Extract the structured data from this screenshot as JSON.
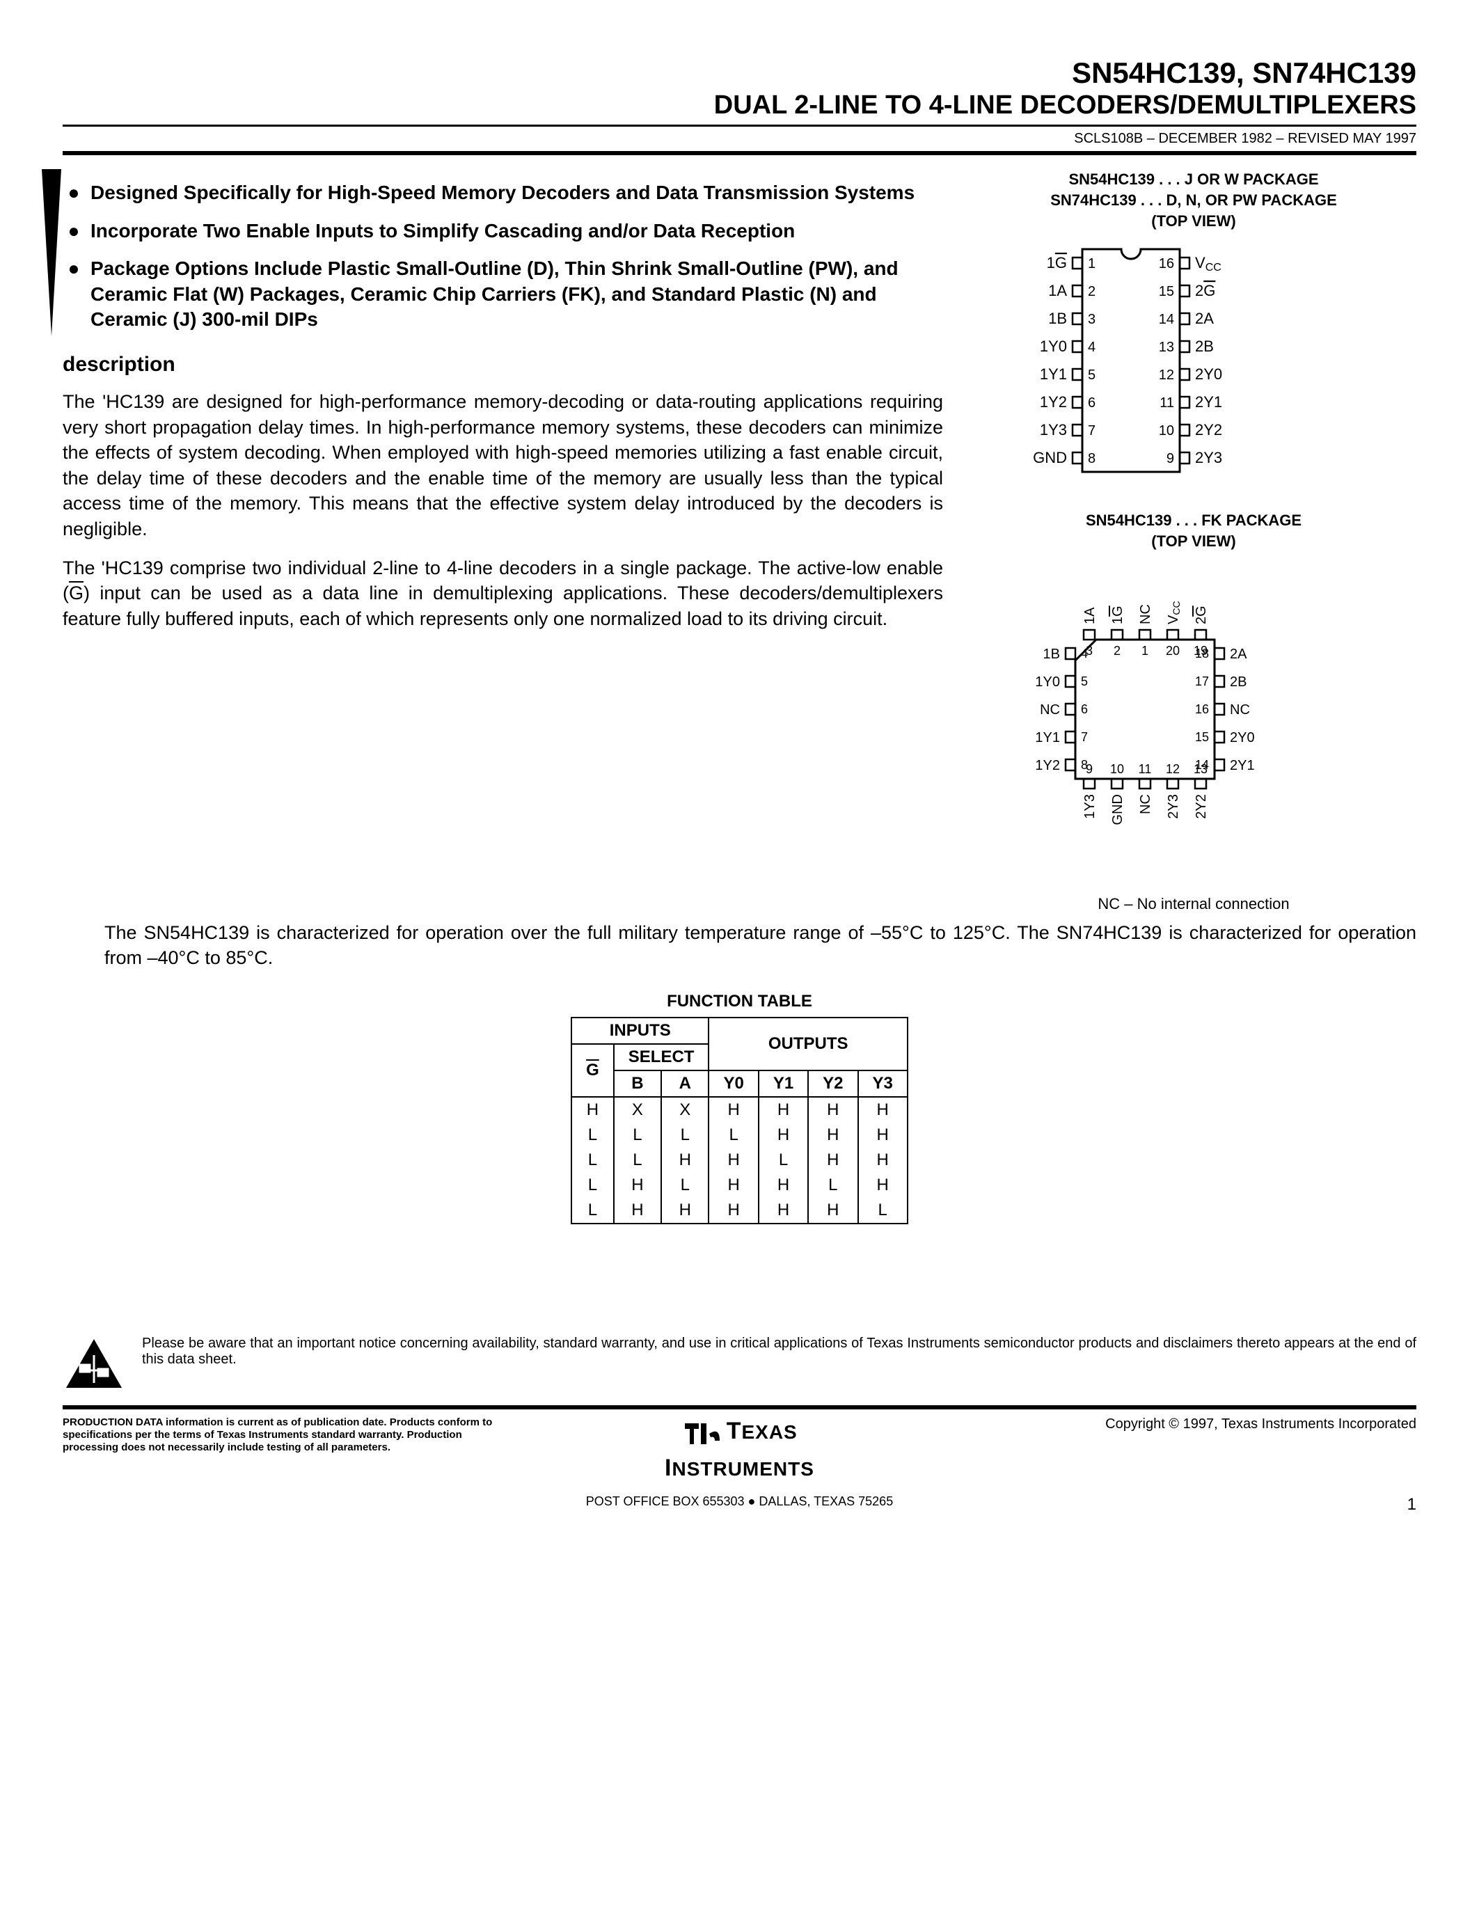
{
  "header": {
    "part_numbers": "SN54HC139, SN74HC139",
    "title": "DUAL 2-LINE TO 4-LINE DECODERS/DEMULTIPLEXERS",
    "docnum": "SCLS108B – DECEMBER 1982 – REVISED MAY 1997"
  },
  "bullets": [
    "Designed Specifically for High-Speed Memory Decoders and Data Transmission Systems",
    "Incorporate Two Enable Inputs to Simplify Cascading and/or Data Reception",
    "Package Options Include Plastic Small-Outline (D), Thin Shrink Small-Outline (PW), and Ceramic Flat (W) Packages, Ceramic Chip Carriers (FK), and Standard Plastic (N) and Ceramic (J) 300-mil DIPs"
  ],
  "section_title": "description",
  "desc": {
    "p1": "The 'HC139 are designed for high-performance memory-decoding or data-routing applications requiring very short propagation delay times. In high-performance memory systems, these decoders can minimize the effects of system decoding. When employed with high-speed memories utilizing a fast enable circuit, the delay time of these decoders and the enable time of the memory are usually less than the typical access time of the memory. This means that the effective system delay introduced by the decoders is negligible.",
    "p2_a": "The 'HC139 comprise two individual 2-line to 4-line decoders in a single package. The active-low enable (",
    "p2_gbar": "G",
    "p2_b": ") input can be used as a data line in demultiplexing applications. These decoders/demultiplexers feature fully buffered inputs, each of which represents only one normalized load to its driving circuit."
  },
  "full_para": "The SN54HC139 is characterized for operation over the full military temperature range of –55°C to 125°C. The SN74HC139 is characterized for operation from –40°C to 85°C.",
  "pkg1": {
    "label_l1": "SN54HC139 . . . J OR W PACKAGE",
    "label_l2": "SN74HC139 . . . D, N, OR PW PACKAGE",
    "label_l3": "(TOP VIEW)",
    "left_pins": [
      {
        "num": "1",
        "label": "1G",
        "overline": true
      },
      {
        "num": "2",
        "label": "1A"
      },
      {
        "num": "3",
        "label": "1B"
      },
      {
        "num": "4",
        "label": "1Y0"
      },
      {
        "num": "5",
        "label": "1Y1"
      },
      {
        "num": "6",
        "label": "1Y2"
      },
      {
        "num": "7",
        "label": "1Y3"
      },
      {
        "num": "8",
        "label": "GND"
      }
    ],
    "right_pins": [
      {
        "num": "16",
        "label": "VCC",
        "sub": true
      },
      {
        "num": "15",
        "label": "2G",
        "overline": true
      },
      {
        "num": "14",
        "label": "2A"
      },
      {
        "num": "13",
        "label": "2B"
      },
      {
        "num": "12",
        "label": "2Y0"
      },
      {
        "num": "11",
        "label": "2Y1"
      },
      {
        "num": "10",
        "label": "2Y2"
      },
      {
        "num": "9",
        "label": "2Y3"
      }
    ]
  },
  "pkg2": {
    "label_l1": "SN54HC139 . . . FK PACKAGE",
    "label_l2": "(TOP VIEW)",
    "top_pins": [
      {
        "num": "3",
        "label": "1A"
      },
      {
        "num": "2",
        "label": "1G",
        "overline": true
      },
      {
        "num": "1",
        "label": "NC"
      },
      {
        "num": "20",
        "label": "VCC",
        "sub": true
      },
      {
        "num": "19",
        "label": "2G",
        "overline": true
      }
    ],
    "left_pins": [
      {
        "num": "4",
        "label": "1B"
      },
      {
        "num": "5",
        "label": "1Y0"
      },
      {
        "num": "6",
        "label": "NC"
      },
      {
        "num": "7",
        "label": "1Y1"
      },
      {
        "num": "8",
        "label": "1Y2"
      }
    ],
    "right_pins": [
      {
        "num": "18",
        "label": "2A"
      },
      {
        "num": "17",
        "label": "2B"
      },
      {
        "num": "16",
        "label": "NC"
      },
      {
        "num": "15",
        "label": "2Y0"
      },
      {
        "num": "14",
        "label": "2Y1"
      }
    ],
    "bottom_pins": [
      {
        "num": "9",
        "label": "1Y3"
      },
      {
        "num": "10",
        "label": "GND"
      },
      {
        "num": "11",
        "label": "NC"
      },
      {
        "num": "12",
        "label": "2Y3"
      },
      {
        "num": "13",
        "label": "2Y2"
      }
    ],
    "nc_note": "NC – No internal connection"
  },
  "table": {
    "title": "FUNCTION TABLE",
    "h_inputs": "INPUTS",
    "h_outputs": "OUTPUTS",
    "h_select": "SELECT",
    "h_g": "G",
    "h_b": "B",
    "h_a": "A",
    "h_y0": "Y0",
    "h_y1": "Y1",
    "h_y2": "Y2",
    "h_y3": "Y3",
    "rows": [
      [
        "H",
        "X",
        "X",
        "H",
        "H",
        "H",
        "H"
      ],
      [
        "L",
        "L",
        "L",
        "L",
        "H",
        "H",
        "H"
      ],
      [
        "L",
        "L",
        "H",
        "H",
        "L",
        "H",
        "H"
      ],
      [
        "L",
        "H",
        "L",
        "H",
        "H",
        "L",
        "H"
      ],
      [
        "L",
        "H",
        "H",
        "H",
        "H",
        "H",
        "L"
      ]
    ]
  },
  "footer": {
    "notice": "Please be aware that an important notice concerning availability, standard warranty, and use in critical applications of Texas Instruments semiconductor products and disclaimers thereto appears at the end of this data sheet.",
    "prod_data": "PRODUCTION DATA information is current as of publication date. Products conform to specifications per the terms of Texas Instruments standard warranty. Production processing does not necessarily include testing of all parameters.",
    "copyright": "Copyright © 1997, Texas Instruments Incorporated",
    "ti_name": "TEXAS INSTRUMENTS",
    "addr": "POST OFFICE BOX 655303 ● DALLAS, TEXAS 75265",
    "pagenum": "1"
  }
}
